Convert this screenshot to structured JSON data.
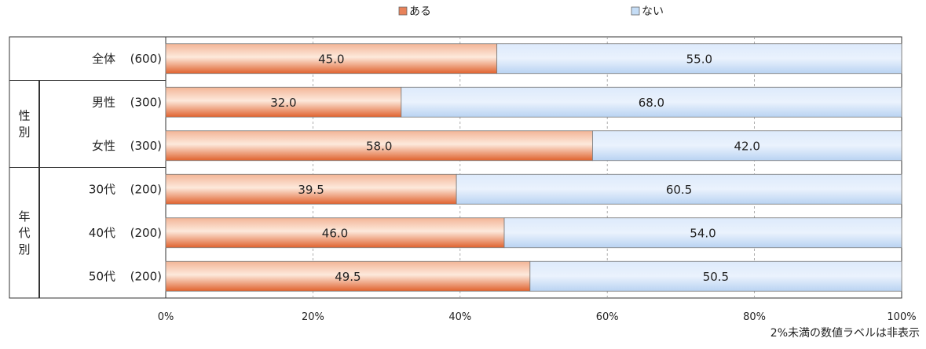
{
  "chart_data": {
    "type": "bar",
    "orientation": "horizontal",
    "stacked": true,
    "percent_stacked": true,
    "categories": [
      {
        "label": "全体",
        "n": "(600)",
        "group": ""
      },
      {
        "label": "男性",
        "n": "(300)",
        "group": "性別"
      },
      {
        "label": "女性",
        "n": "(300)",
        "group": "性別"
      },
      {
        "label": "30代",
        "n": "(200)",
        "group": "年代別"
      },
      {
        "label": "40代",
        "n": "(200)",
        "group": "年代別"
      },
      {
        "label": "50代",
        "n": "(200)",
        "group": "年代別"
      }
    ],
    "groups": [
      {
        "label": "性別",
        "rows": [
          1,
          2
        ]
      },
      {
        "label": "年代別",
        "rows": [
          3,
          4,
          5
        ]
      }
    ],
    "series": [
      {
        "name": "ある",
        "color": "#e8825a",
        "values": [
          45.0,
          32.0,
          58.0,
          39.5,
          46.0,
          49.5
        ]
      },
      {
        "name": "ない",
        "color": "#c5ddf6",
        "values": [
          55.0,
          68.0,
          42.0,
          60.5,
          54.0,
          50.5
        ]
      }
    ],
    "xlim": [
      0,
      100
    ],
    "x_ticks": [
      "0%",
      "20%",
      "40%",
      "60%",
      "80%",
      "100%"
    ],
    "grid": true,
    "legend_position": "top-center",
    "note": "2%未満の数値ラベルは非表示"
  }
}
